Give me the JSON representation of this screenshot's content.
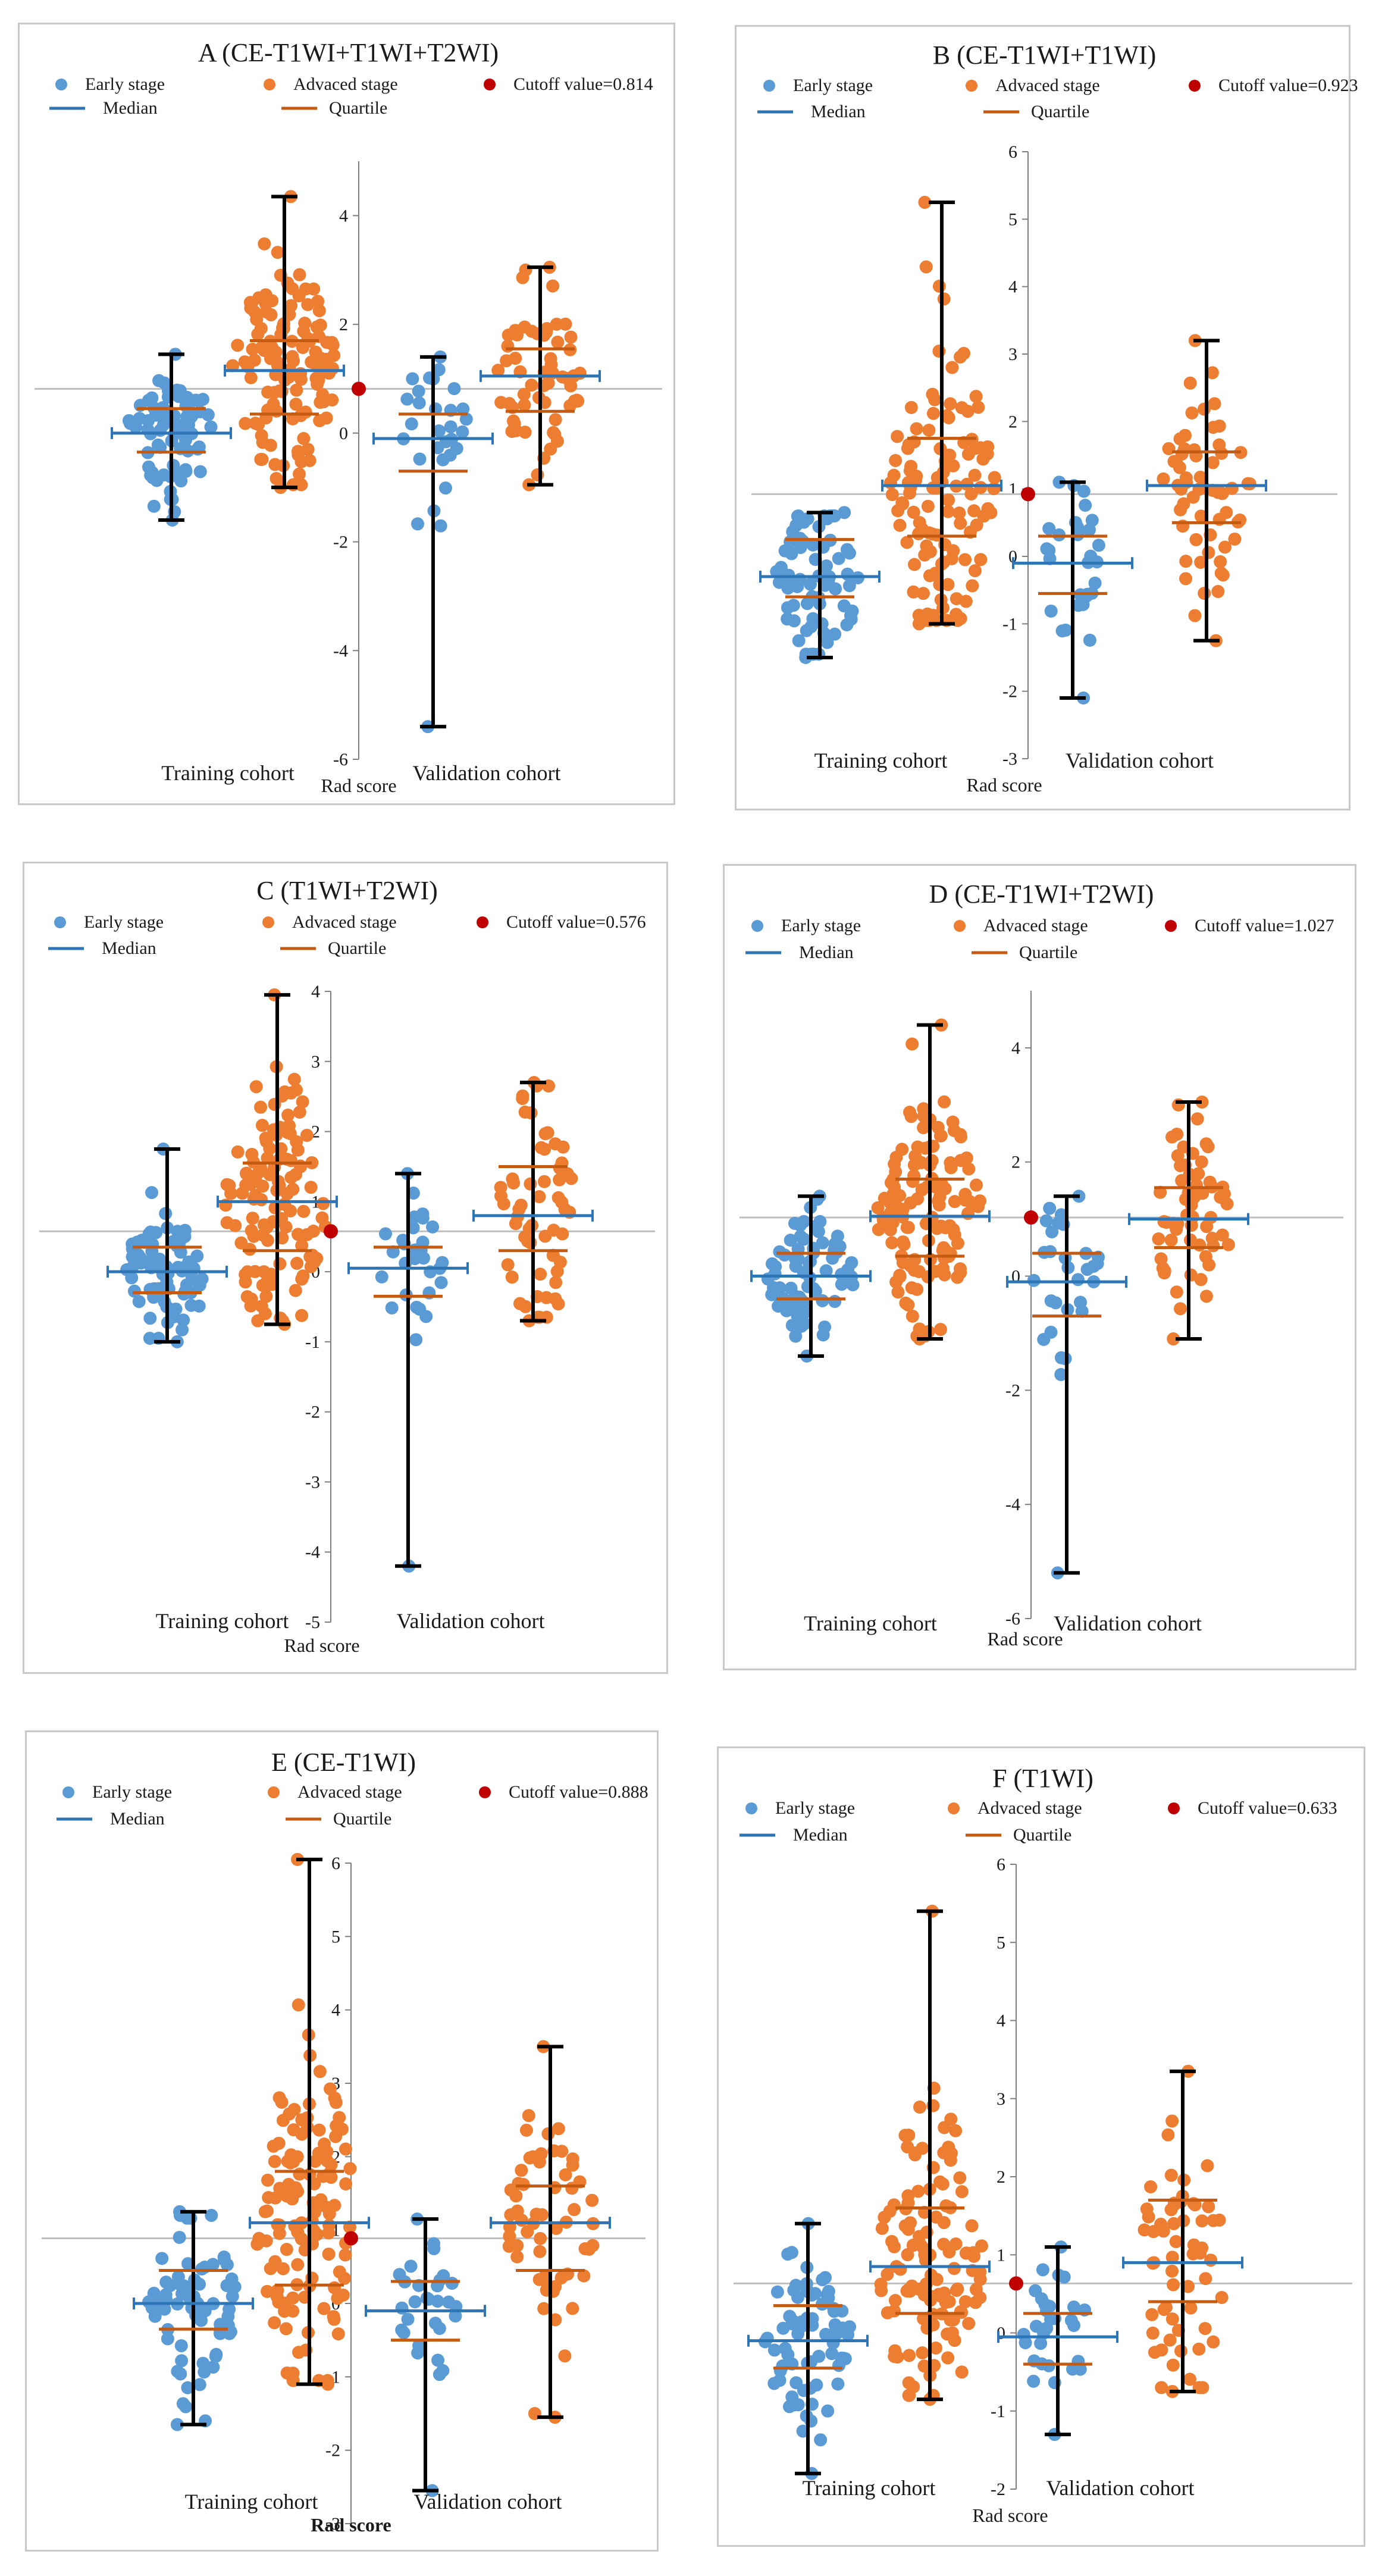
{
  "colors": {
    "early": "#5b9bd5",
    "advanced": "#ed7d31",
    "cutoff": "#c00000",
    "median": "#2e75b6",
    "quartile": "#c55a11",
    "error_bar": "#000000",
    "cutoff_line": "#bfbfbf",
    "axis": "#7f7f7f"
  },
  "legend": {
    "early": "Early stage",
    "advanced": "Advaced stage",
    "median": "Median",
    "quartile": "Quartile"
  },
  "chart_data": [
    {
      "id": "A",
      "type": "scatter",
      "title": "A (CE-T1WI+T1WI+T2WI)",
      "cutoff_label": "Cutoff value=0.814",
      "cutoff": 0.814,
      "ylim": [
        -6,
        5
      ],
      "yticks": [
        -6,
        -4,
        -2,
        0,
        2,
        4
      ],
      "ylabel": "Rad score",
      "ylabel_bold": false,
      "cohorts": [
        "Training cohort",
        "Validation  cohort"
      ],
      "groups": [
        {
          "cohort": 0,
          "stage": "early",
          "n": 75,
          "median": 0.0,
          "q1": -0.35,
          "q3": 0.45,
          "min": -1.6,
          "max": 1.45
        },
        {
          "cohort": 0,
          "stage": "advanced",
          "n": 125,
          "median": 1.15,
          "q1": 0.35,
          "q3": 1.7,
          "min": -1.0,
          "max": 4.35
        },
        {
          "cohort": 1,
          "stage": "early",
          "n": 30,
          "median": -0.1,
          "q1": -0.7,
          "q3": 0.35,
          "min": -5.4,
          "max": 1.4
        },
        {
          "cohort": 1,
          "stage": "advanced",
          "n": 60,
          "median": 1.05,
          "q1": 0.4,
          "q3": 1.55,
          "min": -0.95,
          "max": 3.05
        }
      ]
    },
    {
      "id": "B",
      "type": "scatter",
      "title": "B (CE-T1WI+T1WI)",
      "cutoff_label": "Cutoff value=0.923",
      "cutoff": 0.923,
      "ylim": [
        -3,
        6
      ],
      "yticks": [
        -3,
        -2,
        -1,
        0,
        1,
        2,
        3,
        4,
        5,
        6
      ],
      "ylabel": "Rad score",
      "ylabel_bold": false,
      "cohorts": [
        "Training cohort",
        "Validation  cohort"
      ],
      "groups": [
        {
          "cohort": 0,
          "stage": "early",
          "n": 75,
          "median": -0.3,
          "q1": -0.6,
          "q3": 0.25,
          "min": -1.5,
          "max": 0.65
        },
        {
          "cohort": 0,
          "stage": "advanced",
          "n": 125,
          "median": 1.05,
          "q1": 0.3,
          "q3": 1.75,
          "min": -1.0,
          "max": 5.25
        },
        {
          "cohort": 1,
          "stage": "early",
          "n": 30,
          "median": -0.1,
          "q1": -0.55,
          "q3": 0.3,
          "min": -2.1,
          "max": 1.1
        },
        {
          "cohort": 1,
          "stage": "advanced",
          "n": 60,
          "median": 1.05,
          "q1": 0.5,
          "q3": 1.55,
          "min": -1.25,
          "max": 3.2
        }
      ]
    },
    {
      "id": "C",
      "type": "scatter",
      "title": "C (T1WI+T2WI)",
      "cutoff_label": "Cutoff value=0.576",
      "cutoff": 0.576,
      "ylim": [
        -5,
        4
      ],
      "yticks": [
        -5,
        -4,
        -3,
        -2,
        -1,
        0,
        1,
        2,
        3,
        4
      ],
      "ylabel": "Rad score",
      "ylabel_bold": false,
      "cohorts": [
        "Training cohort",
        "Validation  cohort"
      ],
      "groups": [
        {
          "cohort": 0,
          "stage": "early",
          "n": 75,
          "median": 0.0,
          "q1": -0.3,
          "q3": 0.35,
          "min": -1.0,
          "max": 1.75
        },
        {
          "cohort": 0,
          "stage": "advanced",
          "n": 125,
          "median": 1.0,
          "q1": 0.3,
          "q3": 1.55,
          "min": -0.75,
          "max": 3.95
        },
        {
          "cohort": 1,
          "stage": "early",
          "n": 30,
          "median": 0.05,
          "q1": -0.35,
          "q3": 0.35,
          "min": -4.2,
          "max": 1.4
        },
        {
          "cohort": 1,
          "stage": "advanced",
          "n": 60,
          "median": 0.8,
          "q1": 0.3,
          "q3": 1.5,
          "min": -0.7,
          "max": 2.7
        }
      ]
    },
    {
      "id": "D",
      "type": "scatter",
      "title": "D (CE-T1WI+T2WI)",
      "cutoff_label": "Cutoff value=1.027",
      "cutoff": 1.027,
      "ylim": [
        -6,
        5
      ],
      "yticks": [
        -6,
        -4,
        -2,
        0,
        2,
        4
      ],
      "ylabel": "Rad score",
      "ylabel_bold": false,
      "cohorts": [
        "Training cohort",
        "Validation  cohort"
      ],
      "groups": [
        {
          "cohort": 0,
          "stage": "early",
          "n": 75,
          "median": 0.0,
          "q1": -0.4,
          "q3": 0.4,
          "min": -1.4,
          "max": 1.4
        },
        {
          "cohort": 0,
          "stage": "advanced",
          "n": 125,
          "median": 1.05,
          "q1": 0.35,
          "q3": 1.7,
          "min": -1.1,
          "max": 4.4
        },
        {
          "cohort": 1,
          "stage": "early",
          "n": 30,
          "median": -0.1,
          "q1": -0.7,
          "q3": 0.4,
          "min": -5.2,
          "max": 1.4
        },
        {
          "cohort": 1,
          "stage": "advanced",
          "n": 60,
          "median": 1.0,
          "q1": 0.5,
          "q3": 1.55,
          "min": -1.1,
          "max": 3.05
        }
      ]
    },
    {
      "id": "E",
      "type": "scatter",
      "title": "E (CE-T1WI)",
      "cutoff_label": "Cutoff value=0.888",
      "cutoff": 0.888,
      "ylim": [
        -3,
        6
      ],
      "yticks": [
        -3,
        -2,
        -1,
        0,
        1,
        2,
        3,
        4,
        5,
        6
      ],
      "ylabel": "Rad score",
      "ylabel_bold": true,
      "cohorts": [
        "Training cohort",
        "Validation cohort"
      ],
      "groups": [
        {
          "cohort": 0,
          "stage": "early",
          "n": 75,
          "median": 0.0,
          "q1": -0.35,
          "q3": 0.45,
          "min": -1.65,
          "max": 1.25
        },
        {
          "cohort": 0,
          "stage": "advanced",
          "n": 125,
          "median": 1.1,
          "q1": 0.25,
          "q3": 1.8,
          "min": -1.1,
          "max": 6.05
        },
        {
          "cohort": 1,
          "stage": "early",
          "n": 30,
          "median": -0.1,
          "q1": -0.5,
          "q3": 0.3,
          "min": -2.55,
          "max": 1.15
        },
        {
          "cohort": 1,
          "stage": "advanced",
          "n": 60,
          "median": 1.1,
          "q1": 0.45,
          "q3": 1.6,
          "min": -1.55,
          "max": 3.5
        }
      ]
    },
    {
      "id": "F",
      "type": "scatter",
      "title": "F (T1WI)",
      "cutoff_label": "Cutoff value=0.633",
      "cutoff": 0.633,
      "ylim": [
        -2,
        6
      ],
      "yticks": [
        -2,
        -1,
        0,
        1,
        2,
        3,
        4,
        5,
        6
      ],
      "ylabel": "Rad score",
      "ylabel_bold": false,
      "cohorts": [
        "Training cohort",
        "Validation  cohort"
      ],
      "groups": [
        {
          "cohort": 0,
          "stage": "early",
          "n": 75,
          "median": -0.1,
          "q1": -0.45,
          "q3": 0.35,
          "min": -1.8,
          "max": 1.4
        },
        {
          "cohort": 0,
          "stage": "advanced",
          "n": 125,
          "median": 0.85,
          "q1": 0.25,
          "q3": 1.6,
          "min": -0.85,
          "max": 5.4
        },
        {
          "cohort": 1,
          "stage": "early",
          "n": 30,
          "median": -0.05,
          "q1": -0.4,
          "q3": 0.25,
          "min": -1.3,
          "max": 1.1
        },
        {
          "cohort": 1,
          "stage": "advanced",
          "n": 60,
          "median": 0.9,
          "q1": 0.4,
          "q3": 1.7,
          "min": -0.75,
          "max": 3.35
        }
      ]
    }
  ]
}
